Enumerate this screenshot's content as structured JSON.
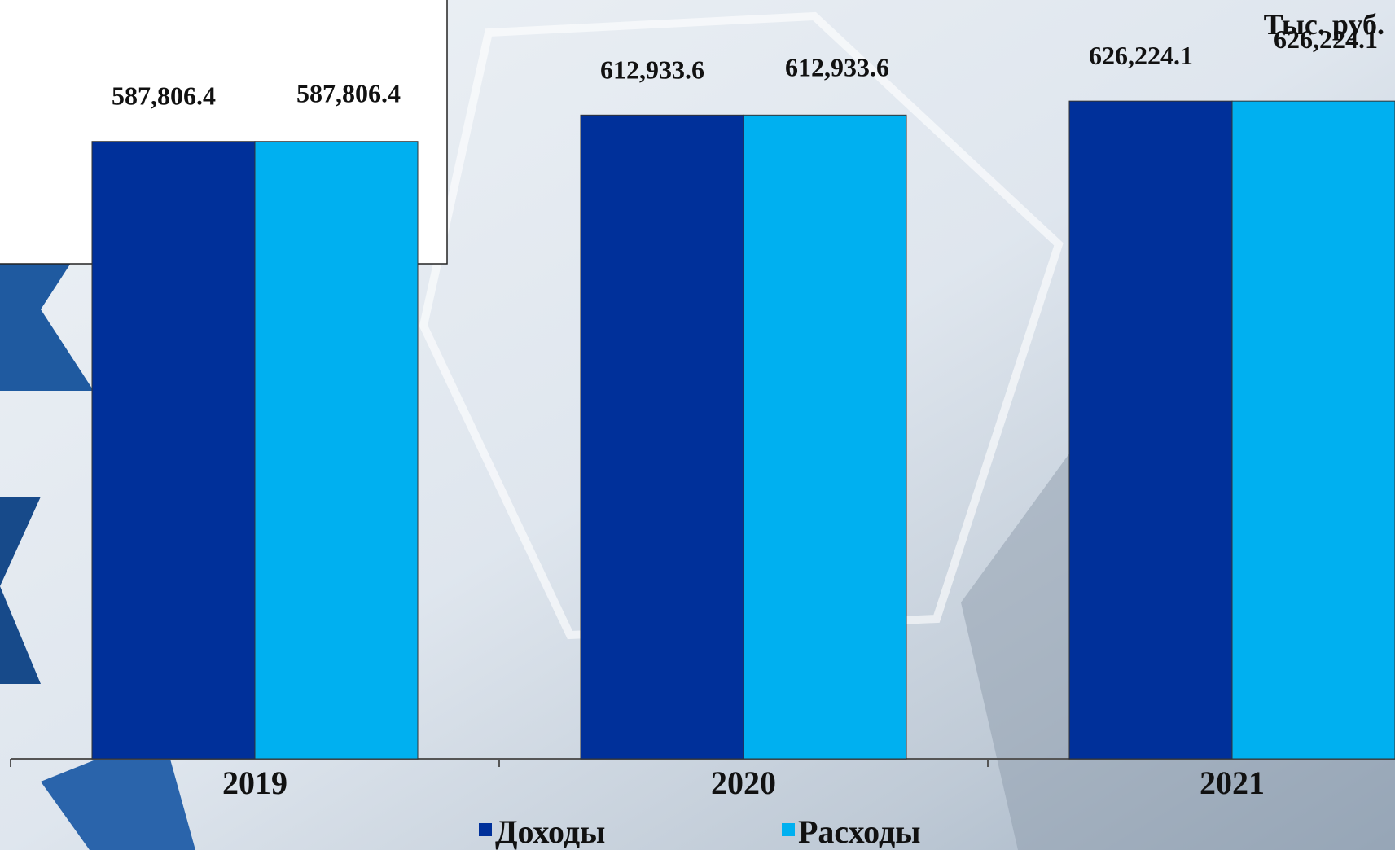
{
  "chart_data": {
    "type": "bar",
    "annotation": "Тыс. руб.",
    "categories": [
      "2019",
      "2020",
      "2021"
    ],
    "series": [
      {
        "name": "Доходы",
        "color": "#00309a",
        "values": [
          587806.4,
          612933.6,
          626224.1
        ],
        "value_labels": [
          "587,806.4",
          "612,933.6",
          "626,224.1"
        ]
      },
      {
        "name": "Расходы",
        "color": "#00b0f0",
        "values": [
          587806.4,
          612933.6,
          626224.1
        ],
        "value_labels": [
          "587,806.4",
          "612,933.6",
          "626,224.1"
        ]
      }
    ],
    "ylim": [
      0,
      700000
    ]
  }
}
